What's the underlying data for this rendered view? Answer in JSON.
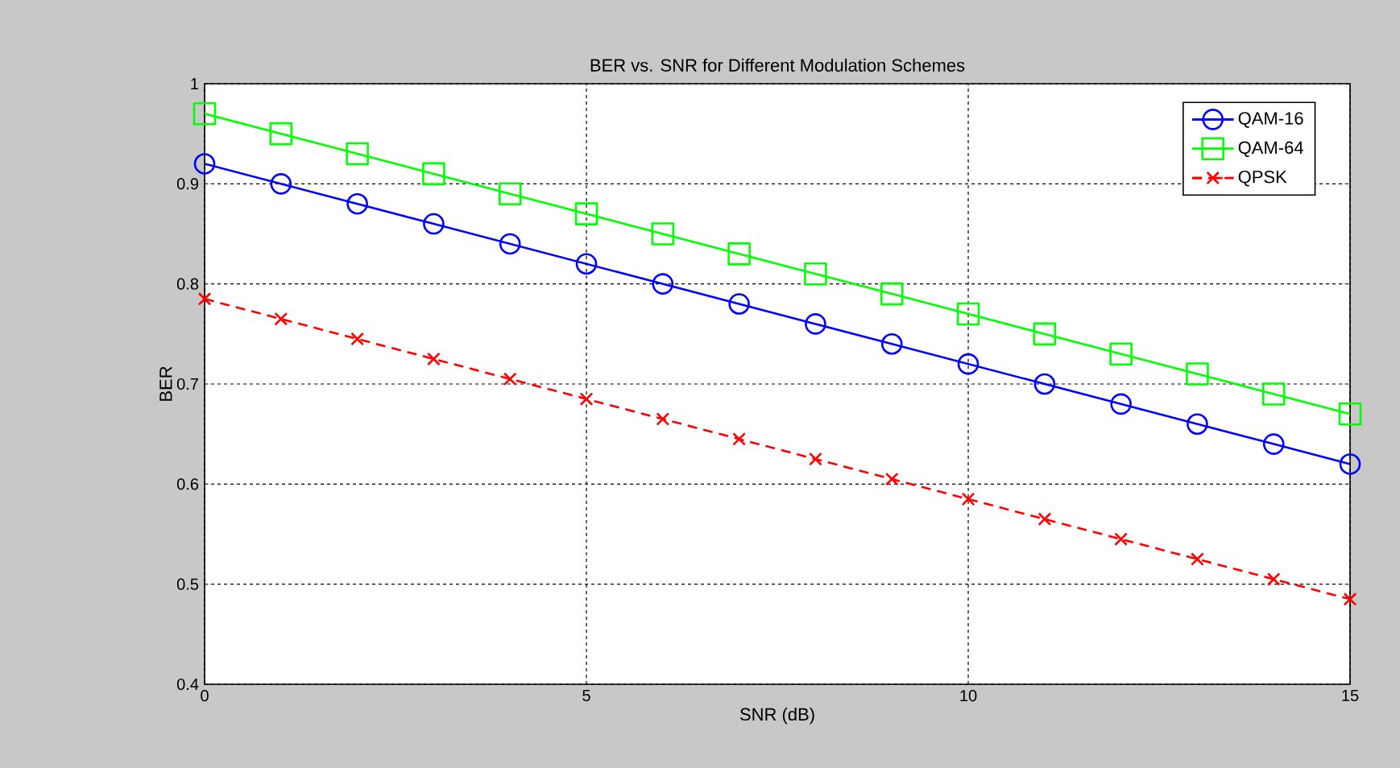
{
  "chart_data": {
    "type": "line",
    "title": "BER vs. SNR for Different Modulation Schemes",
    "xlabel": "SNR (dB)",
    "ylabel": "BER",
    "x": [
      0,
      1,
      2,
      3,
      4,
      5,
      6,
      7,
      8,
      9,
      10,
      11,
      12,
      13,
      14,
      15
    ],
    "series": [
      {
        "name": "QAM-16",
        "color": "#0000ff",
        "marker": "circle",
        "line_style": "solid",
        "values": [
          0.92,
          0.9,
          0.88,
          0.86,
          0.84,
          0.82,
          0.8,
          0.78,
          0.76,
          0.74,
          0.72,
          0.7,
          0.68,
          0.66,
          0.64,
          0.62
        ]
      },
      {
        "name": "QAM-64",
        "color": "#00ff00",
        "marker": "square",
        "line_style": "solid",
        "values": [
          0.97,
          0.95,
          0.93,
          0.91,
          0.89,
          0.87,
          0.85,
          0.83,
          0.81,
          0.79,
          0.77,
          0.75,
          0.73,
          0.71,
          0.69,
          0.67
        ]
      },
      {
        "name": "QPSK",
        "color": "#ff0000",
        "marker": "cross",
        "line_style": "dashed",
        "values": [
          0.785,
          0.765,
          0.745,
          0.725,
          0.705,
          0.685,
          0.665,
          0.645,
          0.625,
          0.605,
          0.585,
          0.565,
          0.545,
          0.525,
          0.505,
          0.485
        ]
      }
    ],
    "xlim": [
      0,
      15
    ],
    "ylim": [
      0.4,
      1
    ],
    "xticks": [
      0,
      5,
      10,
      15
    ],
    "yticks": [
      0.4,
      0.5,
      0.6,
      0.7,
      0.8,
      0.9,
      1
    ],
    "grid": true,
    "legend": "top right"
  }
}
